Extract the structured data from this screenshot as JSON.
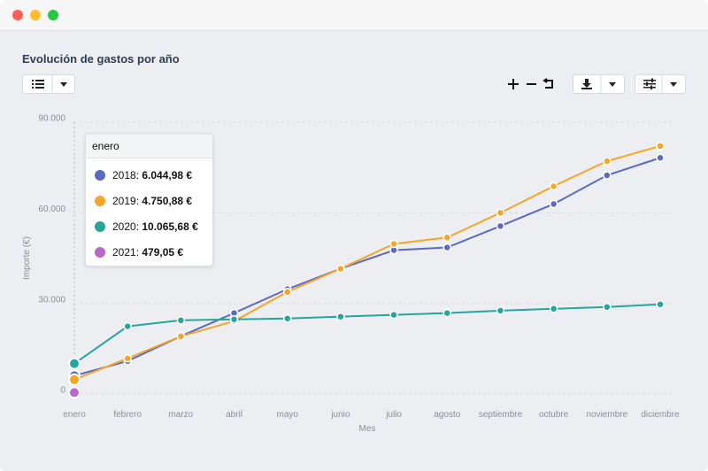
{
  "chart_data": {
    "type": "line",
    "title": "Evolución de gastos por año",
    "categories": [
      "enero",
      "febrero",
      "marzo",
      "abril",
      "mayo",
      "junio",
      "julio",
      "agosto",
      "septiembre",
      "octubre",
      "noviembre",
      "diciembre"
    ],
    "series": [
      {
        "name": "2018",
        "color": "#5c6bc0",
        "values": [
          6044.98,
          10900,
          19100,
          26800,
          34700,
          41500,
          47600,
          48500,
          55600,
          62900,
          72400,
          78200
        ]
      },
      {
        "name": "2019",
        "color": "#f4a629",
        "values": [
          4750.88,
          11800,
          19100,
          24100,
          33800,
          41500,
          49700,
          51800,
          60000,
          68800,
          77100,
          82100
        ]
      },
      {
        "name": "2020",
        "color": "#26a69a",
        "values": [
          10065.68,
          22400,
          24400,
          24700,
          25000,
          25600,
          26200,
          26800,
          27600,
          28200,
          28800,
          29700
        ]
      },
      {
        "name": "2021",
        "color": "#ba68c8",
        "values": [
          479.05,
          null,
          null,
          null,
          null,
          null,
          null,
          null,
          null,
          null,
          null,
          null
        ]
      }
    ],
    "ylim": [
      0,
      90000
    ],
    "yticks": [
      0,
      {
        "value": 30000,
        "label": "30.000"
      },
      {
        "value": 60000,
        "label": "60.000"
      },
      {
        "value": 90000,
        "label": "90.000"
      }
    ],
    "grid": true,
    "xlabel": "Mes",
    "ylabel": "Importe (€)",
    "tooltip": {
      "title": "enero",
      "values": [
        "6.044,98 €",
        "4.750,88 €",
        "10.065,68 €",
        "479,05 €"
      ]
    }
  }
}
